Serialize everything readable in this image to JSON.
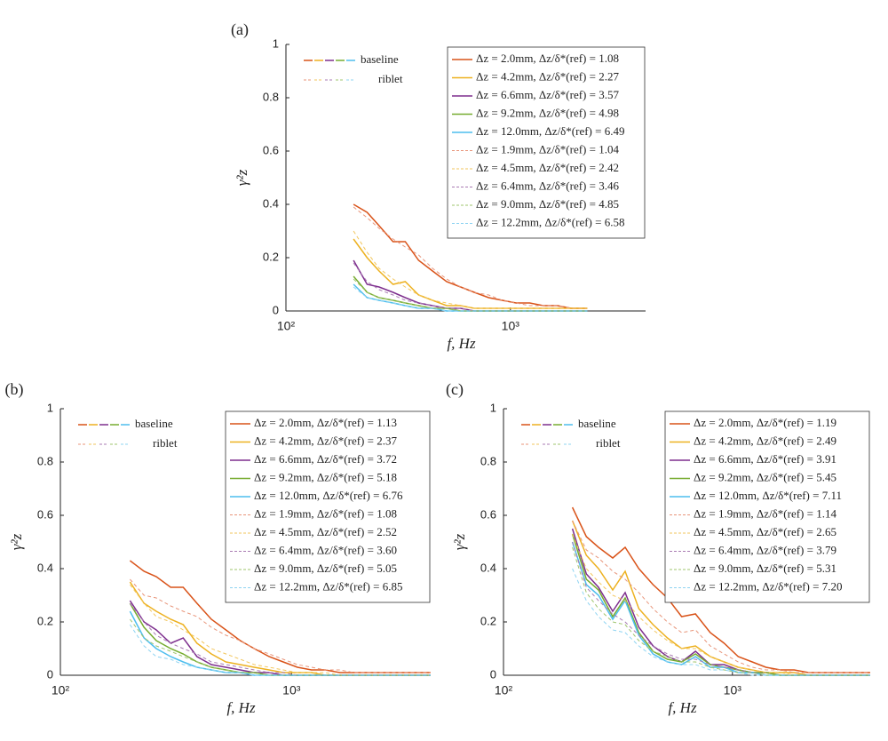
{
  "chart_data": [
    {
      "type": "line",
      "panel": "(a)",
      "xlabel": "f, Hz",
      "ylabel": "γ²z",
      "log_x": true,
      "xlim": [
        100,
        4000
      ],
      "xticks": [
        {
          "value": 100,
          "label": "10²"
        },
        {
          "value": 1000,
          "label": "10³"
        }
      ],
      "ylim": [
        0,
        1
      ],
      "yticks": [
        0,
        0.2,
        0.4,
        0.6,
        0.8,
        1
      ],
      "style_legend": [
        {
          "label": "baseline",
          "dash": false
        },
        {
          "label": "riblet",
          "dash": true
        }
      ],
      "x": [
        200,
        230,
        260,
        300,
        340,
        390,
        450,
        520,
        600,
        690,
        800,
        920,
        1060,
        1220,
        1400,
        1620,
        1860,
        2200
      ],
      "series": [
        {
          "name": "Δz = 2.0mm, Δz/δ*(ref) = 1.08",
          "color": "#d95319",
          "dash": false,
          "values": [
            0.4,
            0.37,
            0.32,
            0.26,
            0.26,
            0.19,
            0.15,
            0.11,
            0.09,
            0.07,
            0.05,
            0.04,
            0.03,
            0.03,
            0.02,
            0.02,
            0.01,
            0.01
          ]
        },
        {
          "name": "Δz = 4.2mm, Δz/δ*(ref) = 2.27",
          "color": "#edb120",
          "dash": false,
          "values": [
            0.27,
            0.2,
            0.15,
            0.1,
            0.11,
            0.06,
            0.04,
            0.02,
            0.02,
            0.01,
            0.01,
            0.01,
            0.01,
            0.01,
            0.01,
            0.01,
            0.01,
            0.01
          ]
        },
        {
          "name": "Δz = 6.6mm, Δz/δ*(ref) = 3.57",
          "color": "#7e2f8e",
          "dash": false,
          "values": [
            0.19,
            0.1,
            0.09,
            0.07,
            0.05,
            0.03,
            0.02,
            0.01,
            0.01,
            0,
            0,
            0,
            0,
            0,
            0,
            0,
            0,
            0
          ]
        },
        {
          "name": "Δz = 9.2mm, Δz/δ*(ref) = 4.98",
          "color": "#77ac30",
          "dash": false,
          "values": [
            0.13,
            0.07,
            0.05,
            0.04,
            0.03,
            0.02,
            0.01,
            0.01,
            0,
            0,
            0,
            0,
            0,
            0,
            0,
            0,
            0,
            0
          ]
        },
        {
          "name": "Δz = 12.0mm, Δz/δ*(ref) = 6.49",
          "color": "#4dbeee",
          "dash": false,
          "values": [
            0.1,
            0.05,
            0.04,
            0.03,
            0.02,
            0.01,
            0.01,
            0,
            0,
            0,
            0,
            0,
            0,
            0,
            0,
            0,
            0,
            0
          ]
        },
        {
          "name": "Δz = 1.9mm, Δz/δ*(ref) = 1.04",
          "color": "#e8957a",
          "dash": true,
          "values": [
            0.39,
            0.35,
            0.31,
            0.27,
            0.24,
            0.21,
            0.16,
            0.12,
            0.09,
            0.07,
            0.06,
            0.04,
            0.03,
            0.02,
            0.02,
            0.02,
            0.01,
            0.01
          ]
        },
        {
          "name": "Δz = 4.5mm, Δz/δ*(ref) = 2.42",
          "color": "#f2c65c",
          "dash": true,
          "values": [
            0.3,
            0.22,
            0.16,
            0.12,
            0.09,
            0.06,
            0.04,
            0.03,
            0.02,
            0.01,
            0.01,
            0.01,
            0.01,
            0.01,
            0.01,
            0.01,
            0.01,
            0.01
          ]
        },
        {
          "name": "Δz = 6.4mm, Δz/δ*(ref) = 3.46",
          "color": "#a97bb3",
          "dash": true,
          "values": [
            0.18,
            0.11,
            0.08,
            0.06,
            0.04,
            0.03,
            0.02,
            0.01,
            0.01,
            0,
            0,
            0,
            0,
            0,
            0,
            0,
            0,
            0
          ]
        },
        {
          "name": "Δz = 9.0mm, Δz/δ*(ref) = 4.85",
          "color": "#9fc56e",
          "dash": true,
          "values": [
            0.12,
            0.07,
            0.05,
            0.04,
            0.03,
            0.02,
            0.01,
            0.01,
            0,
            0,
            0,
            0,
            0,
            0,
            0,
            0,
            0,
            0
          ]
        },
        {
          "name": "Δz = 12.2mm, Δz/δ*(ref) = 6.58",
          "color": "#8fd4f2",
          "dash": true,
          "values": [
            0.09,
            0.05,
            0.04,
            0.03,
            0.02,
            0.01,
            0.01,
            0,
            0,
            0,
            0,
            0,
            0,
            0,
            0,
            0,
            0,
            0
          ]
        }
      ]
    },
    {
      "type": "line",
      "panel": "(b)",
      "xlabel": "f, Hz",
      "ylabel": "γ²z",
      "log_x": true,
      "xlim": [
        100,
        4000
      ],
      "xticks": [
        {
          "value": 100,
          "label": "10²"
        },
        {
          "value": 1000,
          "label": "10³"
        }
      ],
      "ylim": [
        0,
        1
      ],
      "yticks": [
        0,
        0.2,
        0.4,
        0.6,
        0.8,
        1
      ],
      "style_legend": [
        {
          "label": "baseline",
          "dash": false
        },
        {
          "label": "riblet",
          "dash": true
        }
      ],
      "x": [
        200,
        230,
        260,
        300,
        340,
        390,
        450,
        520,
        600,
        690,
        800,
        920,
        1060,
        1220,
        1400,
        1620,
        1860,
        2150,
        2500,
        2900,
        3400,
        4000
      ],
      "series": [
        {
          "name": "Δz = 2.0mm, Δz/δ*(ref) = 1.13",
          "color": "#d95319",
          "dash": false,
          "values": [
            0.43,
            0.39,
            0.37,
            0.33,
            0.33,
            0.27,
            0.21,
            0.17,
            0.13,
            0.1,
            0.07,
            0.05,
            0.03,
            0.02,
            0.02,
            0.01,
            0.01,
            0.01,
            0.01,
            0.01,
            0.01,
            0.01
          ]
        },
        {
          "name": "Δz = 4.2mm, Δz/δ*(ref) = 2.37",
          "color": "#edb120",
          "dash": false,
          "values": [
            0.35,
            0.27,
            0.24,
            0.21,
            0.19,
            0.12,
            0.08,
            0.05,
            0.04,
            0.03,
            0.02,
            0.01,
            0.01,
            0.01,
            0,
            0,
            0,
            0,
            0,
            0,
            0,
            0
          ]
        },
        {
          "name": "Δz = 6.6mm, Δz/δ*(ref) = 3.72",
          "color": "#7e2f8e",
          "dash": false,
          "values": [
            0.28,
            0.2,
            0.17,
            0.12,
            0.14,
            0.07,
            0.04,
            0.03,
            0.02,
            0.01,
            0.01,
            0,
            0,
            0,
            0,
            0,
            0,
            0,
            0,
            0,
            0,
            0
          ]
        },
        {
          "name": "Δz = 9.2mm, Δz/δ*(ref) = 5.18",
          "color": "#77ac30",
          "dash": false,
          "values": [
            0.27,
            0.18,
            0.13,
            0.1,
            0.08,
            0.05,
            0.03,
            0.02,
            0.01,
            0.01,
            0,
            0,
            0,
            0,
            0,
            0,
            0,
            0,
            0,
            0,
            0,
            0
          ]
        },
        {
          "name": "Δz = 12.0mm, Δz/δ*(ref) = 6.76",
          "color": "#4dbeee",
          "dash": false,
          "values": [
            0.24,
            0.14,
            0.1,
            0.07,
            0.05,
            0.03,
            0.02,
            0.01,
            0.01,
            0,
            0,
            0,
            0,
            0,
            0,
            0,
            0,
            0,
            0,
            0,
            0,
            0
          ]
        },
        {
          "name": "Δz = 1.9mm, Δz/δ*(ref) = 1.08",
          "color": "#e8957a",
          "dash": true,
          "values": [
            0.36,
            0.3,
            0.29,
            0.26,
            0.24,
            0.22,
            0.18,
            0.15,
            0.13,
            0.1,
            0.08,
            0.06,
            0.04,
            0.03,
            0.02,
            0.02,
            0.01,
            0.01,
            0.01,
            0.01,
            0.01,
            0.01
          ]
        },
        {
          "name": "Δz = 4.5mm, Δz/δ*(ref) = 2.52",
          "color": "#f2c65c",
          "dash": true,
          "values": [
            0.34,
            0.27,
            0.22,
            0.2,
            0.17,
            0.14,
            0.1,
            0.08,
            0.06,
            0.04,
            0.03,
            0.02,
            0.01,
            0.01,
            0.01,
            0,
            0,
            0,
            0,
            0,
            0,
            0
          ]
        },
        {
          "name": "Δz = 6.4mm, Δz/δ*(ref) = 3.60",
          "color": "#a97bb3",
          "dash": true,
          "values": [
            0.27,
            0.2,
            0.15,
            0.12,
            0.1,
            0.08,
            0.05,
            0.04,
            0.03,
            0.02,
            0.01,
            0.01,
            0,
            0,
            0,
            0,
            0,
            0,
            0,
            0,
            0,
            0
          ]
        },
        {
          "name": "Δz = 9.0mm, Δz/δ*(ref) = 5.05",
          "color": "#9fc56e",
          "dash": true,
          "values": [
            0.21,
            0.14,
            0.11,
            0.09,
            0.07,
            0.05,
            0.03,
            0.02,
            0.01,
            0.01,
            0,
            0,
            0,
            0,
            0,
            0,
            0,
            0,
            0,
            0,
            0,
            0
          ]
        },
        {
          "name": "Δz = 12.2mm, Δz/δ*(ref) = 6.85",
          "color": "#8fd4f2",
          "dash": true,
          "values": [
            0.19,
            0.11,
            0.07,
            0.06,
            0.04,
            0.03,
            0.02,
            0.01,
            0.01,
            0,
            0,
            0,
            0,
            0,
            0,
            0,
            0,
            0,
            0,
            0,
            0,
            0
          ]
        }
      ]
    },
    {
      "type": "line",
      "panel": "(c)",
      "xlabel": "f, Hz",
      "ylabel": "γ²z",
      "log_x": true,
      "xlim": [
        100,
        4000
      ],
      "xticks": [
        {
          "value": 100,
          "label": "10²"
        },
        {
          "value": 1000,
          "label": "10³"
        }
      ],
      "ylim": [
        0,
        1
      ],
      "yticks": [
        0,
        0.2,
        0.4,
        0.6,
        0.8,
        1
      ],
      "style_legend": [
        {
          "label": "baseline",
          "dash": false
        },
        {
          "label": "riblet",
          "dash": true
        }
      ],
      "x": [
        200,
        230,
        260,
        300,
        340,
        390,
        450,
        520,
        600,
        690,
        800,
        920,
        1060,
        1220,
        1400,
        1620,
        1860,
        2150,
        2500,
        2900,
        3400,
        4000
      ],
      "series": [
        {
          "name": "Δz = 2.0mm, Δz/δ*(ref) = 1.19",
          "color": "#d95319",
          "dash": false,
          "values": [
            0.63,
            0.52,
            0.48,
            0.44,
            0.48,
            0.4,
            0.34,
            0.29,
            0.22,
            0.23,
            0.16,
            0.12,
            0.07,
            0.05,
            0.03,
            0.02,
            0.02,
            0.01,
            0.01,
            0.01,
            0.01,
            0.01
          ]
        },
        {
          "name": "Δz = 4.2mm, Δz/δ*(ref) = 2.49",
          "color": "#edb120",
          "dash": false,
          "values": [
            0.58,
            0.45,
            0.4,
            0.32,
            0.39,
            0.25,
            0.19,
            0.14,
            0.1,
            0.11,
            0.07,
            0.05,
            0.03,
            0.02,
            0.01,
            0.01,
            0.01,
            0,
            0,
            0,
            0,
            0
          ]
        },
        {
          "name": "Δz = 6.6mm, Δz/δ*(ref) = 3.91",
          "color": "#7e2f8e",
          "dash": false,
          "values": [
            0.55,
            0.38,
            0.33,
            0.24,
            0.31,
            0.18,
            0.11,
            0.07,
            0.05,
            0.09,
            0.04,
            0.04,
            0.02,
            0.01,
            0.01,
            0,
            0,
            0,
            0,
            0,
            0,
            0
          ]
        },
        {
          "name": "Δz = 9.2mm, Δz/δ*(ref) = 5.45",
          "color": "#77ac30",
          "dash": false,
          "values": [
            0.53,
            0.36,
            0.32,
            0.22,
            0.29,
            0.16,
            0.09,
            0.06,
            0.05,
            0.08,
            0.04,
            0.03,
            0.02,
            0.01,
            0.01,
            0,
            0,
            0,
            0,
            0,
            0,
            0
          ]
        },
        {
          "name": "Δz = 12.0mm, Δz/δ*(ref) = 7.11",
          "color": "#4dbeee",
          "dash": false,
          "values": [
            0.5,
            0.34,
            0.3,
            0.21,
            0.28,
            0.15,
            0.08,
            0.05,
            0.04,
            0.07,
            0.03,
            0.03,
            0.01,
            0.01,
            0,
            0,
            0,
            0,
            0,
            0,
            0,
            0
          ]
        },
        {
          "name": "Δz = 1.9mm, Δz/δ*(ref) = 1.14",
          "color": "#e8957a",
          "dash": true,
          "values": [
            0.58,
            0.47,
            0.44,
            0.39,
            0.36,
            0.31,
            0.25,
            0.2,
            0.16,
            0.17,
            0.11,
            0.08,
            0.05,
            0.03,
            0.02,
            0.02,
            0.01,
            0.01,
            0.01,
            0.01,
            0.01,
            0.01
          ]
        },
        {
          "name": "Δz = 4.5mm, Δz/δ*(ref) = 2.65",
          "color": "#f2c65c",
          "dash": true,
          "values": [
            0.53,
            0.4,
            0.35,
            0.3,
            0.28,
            0.22,
            0.17,
            0.13,
            0.1,
            0.1,
            0.07,
            0.05,
            0.03,
            0.02,
            0.01,
            0.01,
            0,
            0,
            0,
            0,
            0,
            0
          ]
        },
        {
          "name": "Δz = 6.4mm, Δz/δ*(ref) = 3.79",
          "color": "#a97bb3",
          "dash": true,
          "values": [
            0.5,
            0.33,
            0.28,
            0.23,
            0.2,
            0.15,
            0.11,
            0.08,
            0.06,
            0.06,
            0.04,
            0.03,
            0.02,
            0.01,
            0,
            0,
            0,
            0,
            0,
            0,
            0,
            0
          ]
        },
        {
          "name": "Δz = 9.0mm, Δz/δ*(ref) = 5.31",
          "color": "#9fc56e",
          "dash": true,
          "values": [
            0.48,
            0.31,
            0.25,
            0.2,
            0.19,
            0.13,
            0.09,
            0.07,
            0.05,
            0.05,
            0.03,
            0.02,
            0.01,
            0.01,
            0,
            0,
            0,
            0,
            0,
            0,
            0,
            0
          ]
        },
        {
          "name": "Δz = 12.2mm, Δz/δ*(ref) = 7.20",
          "color": "#8fd4f2",
          "dash": true,
          "values": [
            0.4,
            0.28,
            0.22,
            0.17,
            0.16,
            0.11,
            0.07,
            0.05,
            0.04,
            0.04,
            0.02,
            0.02,
            0.01,
            0,
            0,
            0,
            0,
            0,
            0,
            0,
            0,
            0
          ]
        }
      ]
    }
  ]
}
